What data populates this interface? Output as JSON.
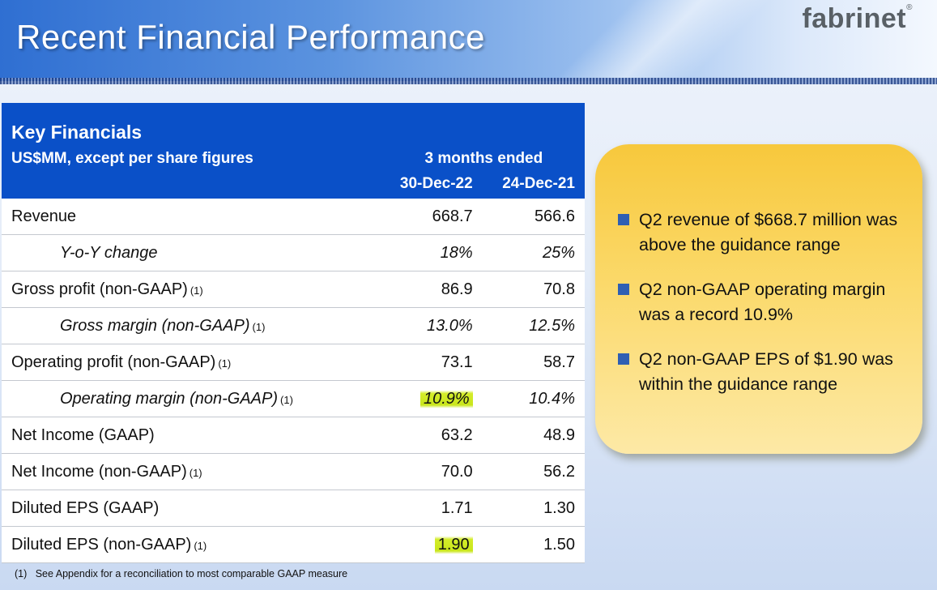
{
  "header": {
    "title": "Recent Financial Performance",
    "logo_text": "fabrinet",
    "logo_mark": "®"
  },
  "table": {
    "title": "Key Financials",
    "units_label": "US$MM, except per share figures",
    "period_label": "3 months ended",
    "columns": [
      "30-Dec-22",
      "24-Dec-21"
    ],
    "rows": [
      {
        "label": "Revenue",
        "note": "",
        "v1": "668.7",
        "v2": "566.6",
        "sub": false,
        "highlight": false
      },
      {
        "label": "Y-o-Y change",
        "note": "",
        "v1": "18%",
        "v2": "25%",
        "sub": true,
        "highlight": false
      },
      {
        "label": "Gross profit (non-GAAP)",
        "note": "(1)",
        "v1": "86.9",
        "v2": "70.8",
        "sub": false,
        "highlight": false
      },
      {
        "label": "Gross margin (non-GAAP)",
        "note": "(1)",
        "v1": "13.0%",
        "v2": "12.5%",
        "sub": true,
        "highlight": false
      },
      {
        "label": "Operating profit (non-GAAP)",
        "note": "(1)",
        "v1": "73.1",
        "v2": "58.7",
        "sub": false,
        "highlight": false
      },
      {
        "label": "Operating margin (non-GAAP)",
        "note": "(1)",
        "v1": "10.9%",
        "v2": "10.4%",
        "sub": true,
        "highlight": true
      },
      {
        "label": "Net Income (GAAP)",
        "note": "",
        "v1": "63.2",
        "v2": "48.9",
        "sub": false,
        "highlight": false
      },
      {
        "label": "Net Income (non-GAAP)",
        "note": "(1)",
        "v1": "70.0",
        "v2": "56.2",
        "sub": false,
        "highlight": false
      },
      {
        "label": "Diluted EPS (GAAP)",
        "note": "",
        "v1": "1.71",
        "v2": "1.30",
        "sub": false,
        "highlight": false
      },
      {
        "label": "Diluted EPS (non-GAAP)",
        "note": "(1)",
        "v1": "1.90",
        "v2": "1.50",
        "sub": false,
        "highlight": true
      }
    ]
  },
  "footnote": {
    "marker": "(1)",
    "text": "See Appendix for a reconciliation to most comparable GAAP measure"
  },
  "callout": {
    "bullets": [
      "Q2 revenue of $668.7 million was above the guidance range",
      "Q2 non-GAAP operating margin was a record 10.9%",
      "Q2 non-GAAP EPS of $1.90 was within the guidance range"
    ]
  },
  "colors": {
    "table_header": "#0a50c8",
    "highlight": "#d4ec2a",
    "callout": "#fbd96a",
    "bullet": "#2f5fb3"
  }
}
